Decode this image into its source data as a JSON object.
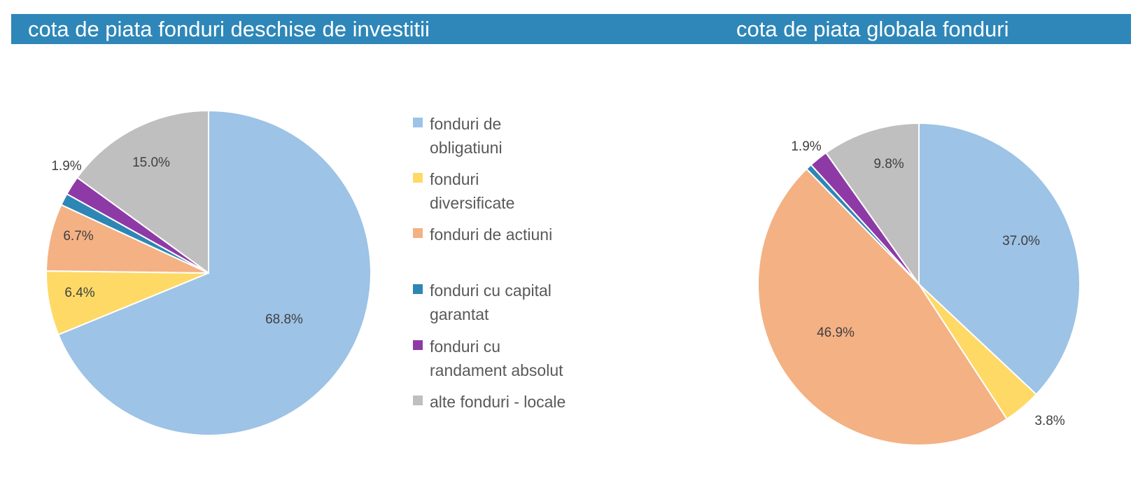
{
  "colors": {
    "header_bg": "#2e87b8",
    "header_text": "#ffffff",
    "label_text": "#404040",
    "legend_text": "#595959"
  },
  "legend": [
    {
      "label": "fonduri de obligatiuni",
      "color": "#9dc3e6"
    },
    {
      "label": "fonduri diversificate",
      "color": "#ffd966"
    },
    {
      "label": "fonduri de actiuni",
      "color": "#f4b183"
    },
    {
      "label": "fonduri cu capital garantat",
      "color": "#2e86b5"
    },
    {
      "label": "fonduri cu randament absolut",
      "color": "#8e3aa6"
    },
    {
      "label": "alte fonduri - locale",
      "color": "#bfbfbf"
    }
  ],
  "chart_data": [
    {
      "type": "pie",
      "title": "cota de piata fonduri deschise de investitii",
      "categories": [
        "fonduri de obligatiuni",
        "fonduri diversificate",
        "fonduri de actiuni",
        "fonduri cu capital garantat",
        "fonduri cu randament absolut",
        "alte fonduri - locale"
      ],
      "values": [
        68.8,
        6.4,
        6.7,
        1.2,
        1.9,
        15.0
      ],
      "data_labels": [
        "68.8%",
        "6.4%",
        "6.7%",
        "",
        "1.9%",
        "15.0%"
      ],
      "legend_position": "right"
    },
    {
      "type": "pie",
      "title": "cota de piata globala fonduri",
      "categories": [
        "fonduri de obligatiuni",
        "fonduri diversificate",
        "fonduri de actiuni",
        "fonduri cu capital garantat",
        "fonduri cu randament absolut",
        "alte fonduri - locale"
      ],
      "values": [
        37.0,
        3.8,
        46.9,
        0.6,
        1.9,
        9.8
      ],
      "data_labels": [
        "37.0%",
        "3.8%",
        "46.9%",
        "",
        "1.9%",
        "9.8%"
      ]
    }
  ]
}
